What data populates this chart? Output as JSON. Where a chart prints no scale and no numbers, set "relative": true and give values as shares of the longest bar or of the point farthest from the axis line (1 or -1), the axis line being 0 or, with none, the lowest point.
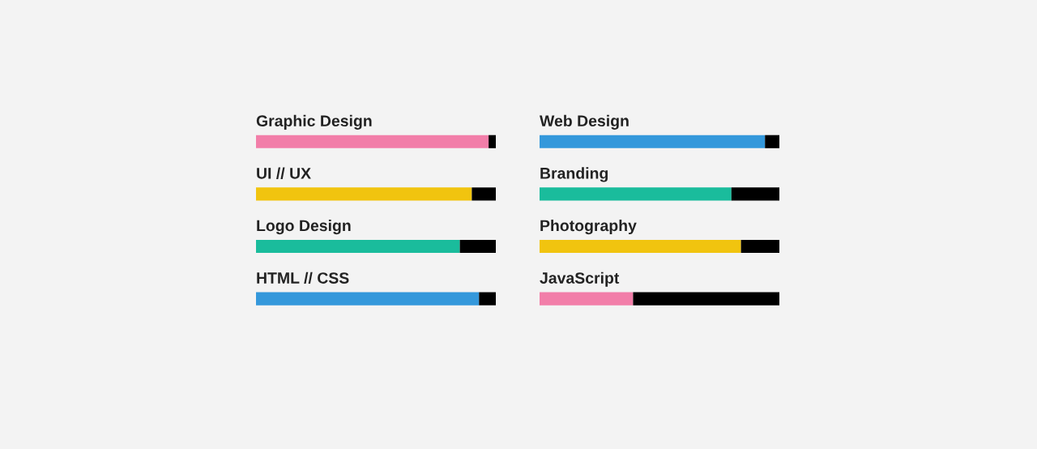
{
  "chart_data": [
    {
      "type": "bar",
      "orientation": "horizontal",
      "stacked": true,
      "relative": true,
      "categories": [
        "Graphic Design",
        "UI // UX",
        "Logo Design",
        "HTML // CSS"
      ],
      "series": [
        {
          "colors": [
            "#f27ea9",
            "#f1c40f",
            "#1abc9c",
            "#3498db"
          ],
          "values": [
            0.97,
            0.9,
            0.85,
            0.93
          ]
        },
        {
          "color": "#000000",
          "values": [
            0.03,
            0.1,
            0.15,
            0.07
          ]
        }
      ]
    },
    {
      "type": "bar",
      "orientation": "horizontal",
      "stacked": true,
      "relative": true,
      "categories": [
        "Web Design",
        "Branding",
        "Photography",
        "JavaScript"
      ],
      "series": [
        {
          "colors": [
            "#3498db",
            "#1abc9c",
            "#f1c40f",
            "#f27ea9"
          ],
          "values": [
            0.94,
            0.8,
            0.84,
            0.39
          ]
        },
        {
          "color": "#000000",
          "values": [
            0.06,
            0.2,
            0.16,
            0.61
          ]
        }
      ]
    }
  ]
}
